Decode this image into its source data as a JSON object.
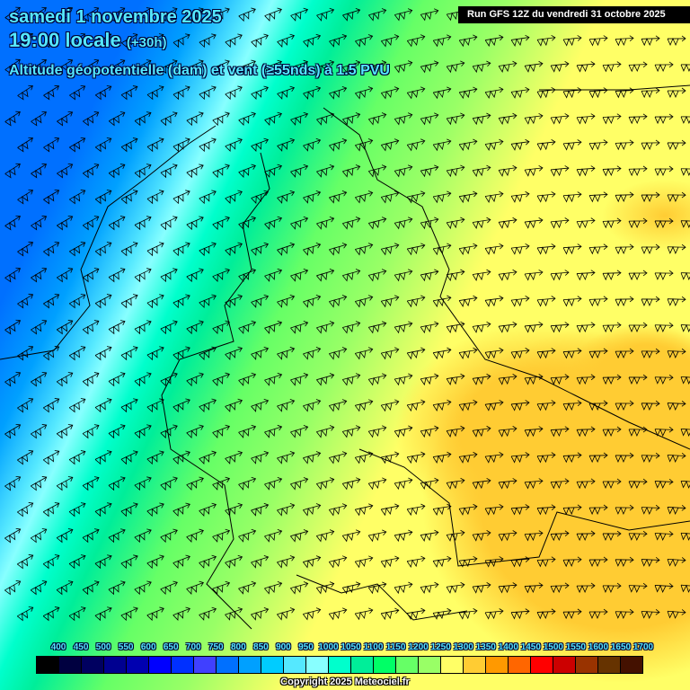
{
  "header": {
    "date": "samedi 1 novembre 2025",
    "time": "19:00 locale",
    "lead": "(+30h)",
    "parameter": "Altitude géopotentielle (dam) et vent (≥55nds) à 1.5 PVU",
    "run": "Run GFS 12Z du vendredi 31 octobre 2025"
  },
  "legend": {
    "labels": [
      "400",
      "450",
      "500",
      "550",
      "600",
      "650",
      "700",
      "750",
      "800",
      "850",
      "900",
      "950",
      "1000",
      "1050",
      "1100",
      "1150",
      "1200",
      "1250",
      "1300",
      "1350",
      "1400",
      "1450",
      "1500",
      "1550",
      "1600",
      "1650",
      "1700"
    ],
    "colors": [
      "#000000",
      "#000040",
      "#000060",
      "#000090",
      "#0000b0",
      "#0000ff",
      "#0030ff",
      "#4040ff",
      "#0070ff",
      "#00a0ff",
      "#00ccff",
      "#55e8ff",
      "#88ffff",
      "#00ffcc",
      "#00ee99",
      "#00ff66",
      "#66ff66",
      "#99ff66",
      "#ffff66",
      "#ffcc33",
      "#ff9900",
      "#ff6600",
      "#ff0000",
      "#cc0000",
      "#993300",
      "#663300",
      "#441100"
    ]
  },
  "footer": {
    "copyright": "Copyright 2025 Meteociel.fr"
  },
  "map": {
    "wind_symbol": "wind-barb-icon",
    "borders": "country-borders"
  }
}
